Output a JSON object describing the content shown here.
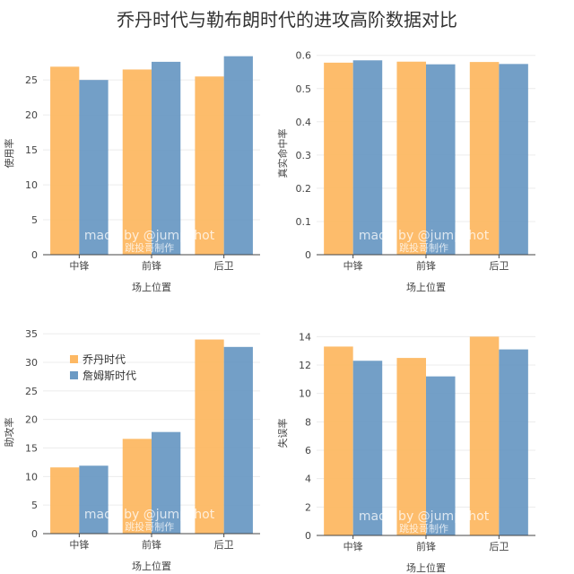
{
  "title": "乔丹时代与勒布朗时代的进攻高阶数据对比",
  "watermark": {
    "line1": "made by @jumpshot",
    "line2": "跳投哥制作"
  },
  "legend": [
    "乔丹时代",
    "詹姆斯时代"
  ],
  "colors": {
    "series1": "#FDB863",
    "series2": "#6B9AC4"
  },
  "chart_data": [
    {
      "type": "bar",
      "xlabel": "场上位置",
      "ylabel": "使用率",
      "ylim": [
        0,
        29
      ],
      "yticks": [
        0,
        5,
        10,
        15,
        20,
        25
      ],
      "categories": [
        "中锋",
        "前锋",
        "后卫"
      ],
      "series": [
        {
          "name": "乔丹时代",
          "values": [
            26.9,
            26.5,
            25.5
          ]
        },
        {
          "name": "詹姆斯时代",
          "values": [
            25.0,
            27.6,
            28.4
          ]
        }
      ],
      "legend": false
    },
    {
      "type": "bar",
      "xlabel": "场上位置",
      "ylabel": "真实命中率",
      "ylim": [
        0,
        0.61
      ],
      "yticks": [
        0,
        0.1,
        0.2,
        0.3,
        0.4,
        0.5,
        0.6
      ],
      "categories": [
        "中锋",
        "前锋",
        "后卫"
      ],
      "series": [
        {
          "name": "乔丹时代",
          "values": [
            0.578,
            0.581,
            0.58
          ]
        },
        {
          "name": "詹姆斯时代",
          "values": [
            0.585,
            0.573,
            0.574
          ]
        }
      ],
      "legend": false
    },
    {
      "type": "bar",
      "xlabel": "场上位置",
      "ylabel": "助攻率",
      "ylim": [
        0,
        35.5
      ],
      "yticks": [
        0,
        5,
        10,
        15,
        20,
        25,
        30,
        35
      ],
      "categories": [
        "中锋",
        "前锋",
        "后卫"
      ],
      "series": [
        {
          "name": "乔丹时代",
          "values": [
            11.6,
            16.6,
            34.0
          ]
        },
        {
          "name": "詹姆斯时代",
          "values": [
            11.9,
            17.8,
            32.7
          ]
        }
      ],
      "legend": true,
      "legend_position": "top-left"
    },
    {
      "type": "bar",
      "xlabel": "场上位置",
      "ylabel": "失误率",
      "ylim": [
        0,
        14.4
      ],
      "yticks": [
        0,
        2,
        4,
        6,
        8,
        10,
        12,
        14
      ],
      "categories": [
        "中锋",
        "前锋",
        "后卫"
      ],
      "series": [
        {
          "name": "乔丹时代",
          "values": [
            13.3,
            12.5,
            14.0
          ]
        },
        {
          "name": "詹姆斯时代",
          "values": [
            12.3,
            11.2,
            13.1
          ]
        }
      ],
      "legend": false
    }
  ]
}
